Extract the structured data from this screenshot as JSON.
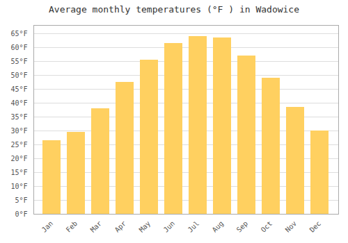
{
  "chart_data": {
    "type": "bar",
    "title": "Average monthly temperatures (°F ) in Wadowice",
    "categories": [
      "Jan",
      "Feb",
      "Mar",
      "Apr",
      "May",
      "Jun",
      "Jul",
      "Aug",
      "Sep",
      "Oct",
      "Nov",
      "Dec"
    ],
    "values": [
      26.5,
      29.5,
      38.0,
      47.5,
      55.5,
      61.5,
      64.0,
      63.5,
      57.0,
      49.0,
      38.5,
      30.0
    ],
    "color": "#FFD060",
    "ylim": [
      0,
      68
    ],
    "yticks": [
      {
        "value": 0,
        "label": "0°F"
      },
      {
        "value": 5,
        "label": "5°F"
      },
      {
        "value": 10,
        "label": "10°F"
      },
      {
        "value": 15,
        "label": "15°F"
      },
      {
        "value": 20,
        "label": "20°F"
      },
      {
        "value": 25,
        "label": "25°F"
      },
      {
        "value": 30,
        "label": "30°F"
      },
      {
        "value": 35,
        "label": "35°F"
      },
      {
        "value": 40,
        "label": "40°F"
      },
      {
        "value": 45,
        "label": "45°F"
      },
      {
        "value": 50,
        "label": "50°F"
      },
      {
        "value": 55,
        "label": "55°F"
      },
      {
        "value": 60,
        "label": "60°F"
      },
      {
        "value": 65,
        "label": "65°F"
      }
    ],
    "grid": true
  }
}
